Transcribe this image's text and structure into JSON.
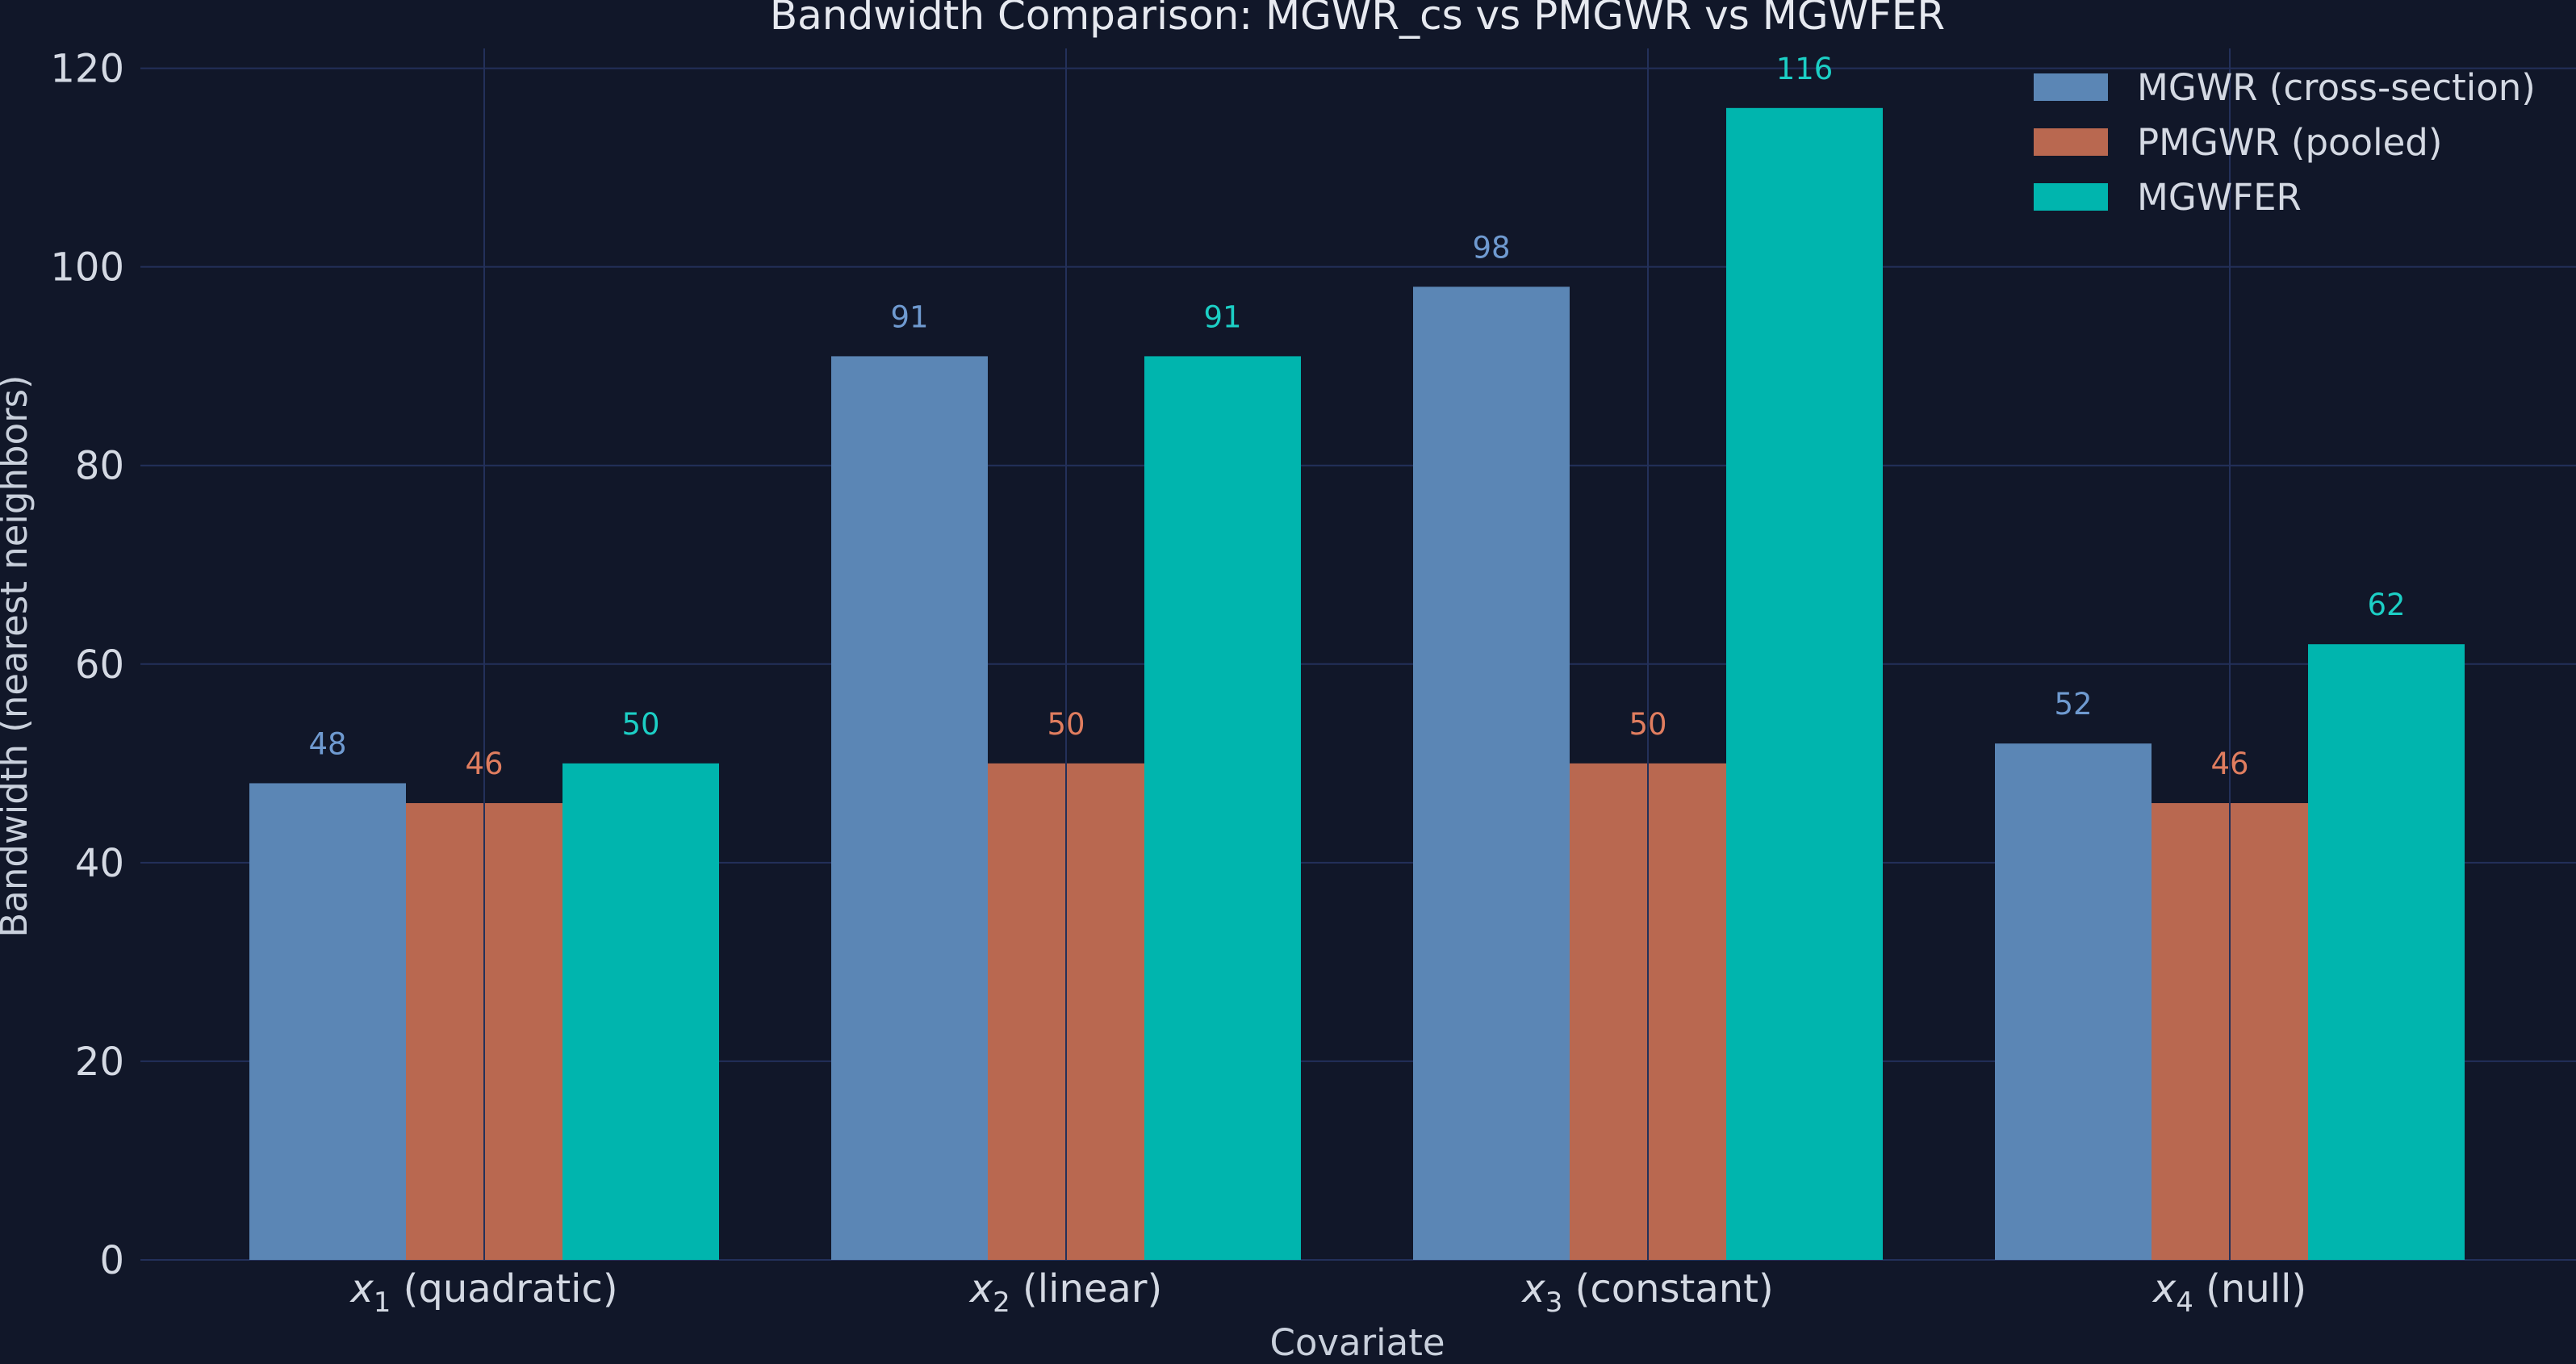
{
  "chart_data": {
    "type": "bar",
    "title": "Bandwidth Comparison: MGWR_cs vs PMGWR vs MGWFER",
    "xlabel": "Covariate",
    "ylabel": "Bandwidth (nearest neighbors)",
    "ylim": [
      0,
      122
    ],
    "yticks": [
      0,
      20,
      40,
      60,
      80,
      100,
      120
    ],
    "yticks_text": [
      "0",
      "20",
      "40",
      "60",
      "80",
      "100",
      "120"
    ],
    "categories": [
      {
        "var": "x",
        "sub": "1",
        "suffix": " (quadratic)"
      },
      {
        "var": "x",
        "sub": "2",
        "suffix": " (linear)"
      },
      {
        "var": "x",
        "sub": "3",
        "suffix": " (constant)"
      },
      {
        "var": "x",
        "sub": "4",
        "suffix": " (null)"
      }
    ],
    "series": [
      {
        "name": "MGWR (cross-section)",
        "color": "#5b86b5",
        "label_color": "#6f9ad0",
        "values": [
          48,
          91,
          98,
          52
        ],
        "labels": [
          "48",
          "91",
          "98",
          "52"
        ]
      },
      {
        "name": "PMGWR (pooled)",
        "color": "#b96850",
        "label_color": "#e07d5f",
        "values": [
          46,
          50,
          50,
          46
        ],
        "labels": [
          "46",
          "50",
          "50",
          "46"
        ]
      },
      {
        "name": "MGWFER",
        "color": "#00b5ae",
        "label_color": "#1ccfc5",
        "values": [
          50,
          91,
          116,
          62
        ],
        "labels": [
          "50",
          "91",
          "116",
          "62"
        ]
      }
    ],
    "grid": true,
    "legend": "top-right"
  }
}
